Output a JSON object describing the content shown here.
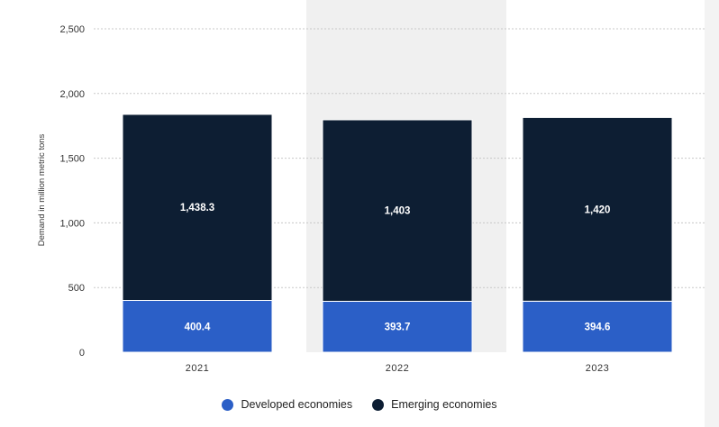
{
  "chart_data": {
    "type": "bar",
    "stacked": true,
    "categories": [
      "2021",
      "2022",
      "2023"
    ],
    "series": [
      {
        "name": "Developed economies",
        "values": [
          400.4,
          393.7,
          394.6
        ],
        "color": "#2b5fc7",
        "labels": [
          "400.4",
          "393.7",
          "394.6"
        ]
      },
      {
        "name": "Emerging economies",
        "values": [
          1438.3,
          1403,
          1420
        ],
        "color": "#0d1e33",
        "labels": [
          "1,438.3",
          "1,403",
          "1,420"
        ]
      }
    ],
    "ylabel": "Demand in million metric tons",
    "ylim": [
      0,
      2500
    ],
    "yticks": [
      {
        "value": 0,
        "label": "0"
      },
      {
        "value": 500,
        "label": "500"
      },
      {
        "value": 1000,
        "label": "1,000"
      },
      {
        "value": 1500,
        "label": "1,500"
      },
      {
        "value": 2000,
        "label": "2,000"
      },
      {
        "value": 2500,
        "label": "2,500"
      }
    ],
    "highlighted_category": "2022",
    "grid": true,
    "legend_position": "bottom-center"
  }
}
